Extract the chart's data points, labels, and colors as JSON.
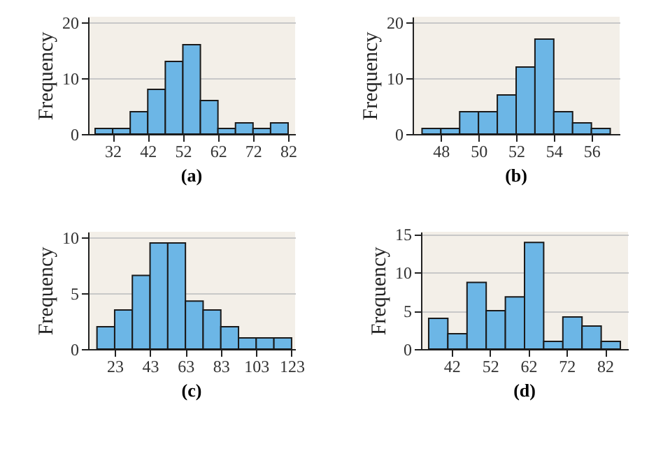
{
  "chart_data": [
    {
      "type": "histogram",
      "title": "(a)",
      "ylabel": "Frequency",
      "color": "#6cb6e6",
      "grid": "y",
      "bins": [
        27,
        32,
        37,
        42,
        47,
        52,
        57,
        62,
        67,
        72,
        77,
        82
      ],
      "values": [
        1,
        1,
        4,
        8,
        13,
        16,
        6,
        1,
        2,
        1,
        2
      ],
      "xlim": [
        25,
        84
      ],
      "xticks": [
        32,
        42,
        52,
        62,
        72,
        82
      ],
      "ylim": [
        0,
        21
      ],
      "yticks": [
        0,
        10,
        20
      ]
    },
    {
      "type": "histogram",
      "title": "(b)",
      "ylabel": "Frequency",
      "color": "#6cb6e6",
      "grid": "y",
      "bins": [
        47,
        48,
        49,
        50,
        51,
        52,
        53,
        54,
        55,
        56,
        57
      ],
      "values": [
        1,
        1,
        4,
        4,
        7,
        12,
        17,
        4,
        2,
        1
      ],
      "xlim": [
        46.5,
        57.5
      ],
      "xticks": [
        48,
        50,
        52,
        54,
        56
      ],
      "ylim": [
        0,
        21
      ],
      "yticks": [
        0,
        10,
        20
      ]
    },
    {
      "type": "histogram",
      "title": "(c)",
      "ylabel": "Frequency",
      "color": "#6cb6e6",
      "grid": "y",
      "bins": [
        13,
        23,
        33,
        43,
        53,
        63,
        73,
        83,
        93,
        103,
        113,
        123
      ],
      "values": [
        2,
        3.5,
        6.6,
        9.5,
        9.5,
        4.3,
        3.5,
        2,
        1,
        1,
        1
      ],
      "xlim": [
        8,
        125
      ],
      "xticks": [
        23,
        43,
        63,
        83,
        103,
        123
      ],
      "ylim": [
        0,
        10.5
      ],
      "yticks": [
        0,
        5,
        10
      ]
    },
    {
      "type": "histogram",
      "title": "(d)",
      "ylabel": "Frequency",
      "color": "#6cb6e6",
      "grid": "y",
      "bins": [
        36,
        41,
        46,
        51,
        56,
        61,
        66,
        71,
        76,
        81,
        86
      ],
      "values": [
        4,
        2,
        8.7,
        5,
        6.8,
        13.9,
        1,
        4.2,
        3,
        1
      ],
      "xlim": [
        34,
        88
      ],
      "xticks": [
        42,
        52,
        62,
        72,
        82
      ],
      "ylim": [
        0,
        15.3
      ],
      "yticks": [
        0,
        5,
        10,
        15
      ]
    }
  ]
}
